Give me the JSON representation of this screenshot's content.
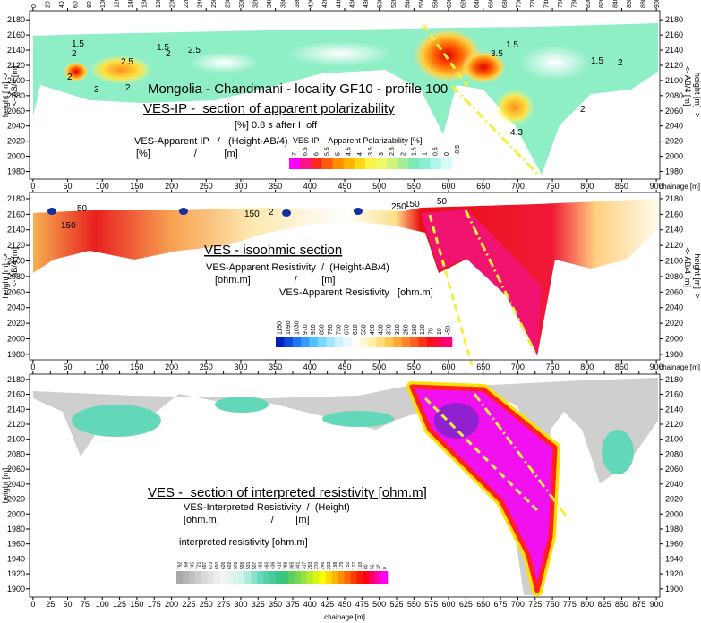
{
  "chart_data": [
    {
      "type": "contour",
      "title": "Mongolia - Chandmani - locality GF10 - profile 100",
      "subtitle": "VES-IP -  section of apparent polarizability",
      "note": "[%] 0.8 s after I  off",
      "formula": "VES-Apparent IP   /   (Height-AB/4)",
      "formula_units": "[%]                /          [m]",
      "x_label": "chainage [m]",
      "y_label": "height [m] ->",
      "y_label2": "<- AB/4 [m]",
      "xlim": [
        -5,
        905
      ],
      "xticks": [
        0,
        50,
        100,
        150,
        200,
        250,
        300,
        350,
        400,
        450,
        500,
        550,
        600,
        650,
        700,
        750,
        800,
        850,
        900
      ],
      "x2ticks": [
        0,
        20,
        40,
        60,
        80,
        100,
        120,
        140,
        160,
        180,
        200,
        220,
        240,
        260,
        280,
        300,
        320,
        340,
        360,
        380,
        400,
        420,
        440,
        460,
        480,
        500,
        520,
        540,
        560,
        580,
        600,
        620,
        640,
        660,
        680,
        700,
        720,
        740,
        760,
        780,
        800,
        820,
        840,
        860,
        880,
        900
      ],
      "ylim": [
        1970,
        2192
      ],
      "yticks": [
        1980,
        2000,
        2020,
        2040,
        2060,
        2080,
        2100,
        2120,
        2140,
        2160,
        2180
      ],
      "colorbar": {
        "title": "VES-IP -  Apparent Polarizability [%]",
        "labels": [
          7,
          6.5,
          6,
          5.5,
          5,
          4.5,
          4,
          3.5,
          3,
          2.5,
          2,
          1.5,
          1,
          0.5,
          0,
          -0.5
        ],
        "colors": [
          "#ff00ff",
          "#ff2020",
          "#ff8000",
          "#ffd000",
          "#ffff60",
          "#c0f080",
          "#70e8c0",
          "#b0f8f0",
          "#ffffff"
        ]
      },
      "contour_labels": [
        1.5,
        2,
        1.5,
        2,
        2.5,
        2.5,
        2,
        3,
        2,
        1.5,
        2,
        2,
        4.3,
        1.5,
        3.5
      ]
    },
    {
      "type": "contour",
      "subtitle": "VES - isoohmic section",
      "formula": "VES-Apparent Resistivity  /  (Height-AB/4)",
      "formula_units": "[ohm.m]                /         [m]",
      "x_label": "chainage [m]",
      "y_label": "height [m] ->",
      "y_label2": "<- AB/4 [m]",
      "xlim": [
        -5,
        905
      ],
      "xticks": [
        0,
        50,
        100,
        150,
        200,
        250,
        300,
        350,
        400,
        450,
        500,
        550,
        600,
        650,
        700,
        750,
        800,
        850,
        900
      ],
      "ylim": [
        1973,
        2188
      ],
      "yticks": [
        1980,
        2000,
        2020,
        2040,
        2060,
        2080,
        2100,
        2120,
        2140,
        2160,
        2180
      ],
      "colorbar": {
        "title": "VES-Apparent Resistivity   [ohm.m]",
        "labels": [
          1150,
          1090,
          1030,
          970,
          910,
          850,
          790,
          730,
          670,
          610,
          550,
          490,
          430,
          370,
          310,
          250,
          190,
          130,
          70,
          10,
          -50
        ],
        "colors": [
          "#0020c0",
          "#2080ff",
          "#60d0ff",
          "#c0f0ff",
          "#ffffff",
          "#fff0a0",
          "#ffc040",
          "#ff7020",
          "#ff1010",
          "#ff0080"
        ]
      },
      "contour_labels": [
        150,
        50,
        150,
        2,
        250,
        150,
        50
      ]
    },
    {
      "type": "contour",
      "subtitle": "VES -  section of interpreted resistivity [ohm.m]",
      "formula": "VES-Interpreted Resistivity  /  (Height)",
      "formula_units": "[ohm.m]                   /        [m]",
      "x_label": "chainage [m]",
      "y_label": "height [m]",
      "xlim": [
        -5,
        905
      ],
      "xticks": [
        0,
        25,
        50,
        75,
        100,
        125,
        150,
        175,
        200,
        225,
        250,
        275,
        300,
        325,
        350,
        375,
        400,
        425,
        450,
        475,
        500,
        525,
        550,
        575,
        600,
        625,
        650,
        675,
        700,
        725,
        750,
        775,
        800,
        825,
        850,
        875,
        900
      ],
      "ylim": [
        1889,
        2187
      ],
      "yticks": [
        1900,
        1920,
        1940,
        1960,
        1980,
        2000,
        2020,
        2040,
        2060,
        2080,
        2100,
        2120,
        2140,
        2160,
        2180
      ],
      "colorbar": {
        "title": "interpreted resistivity [ohm.m]",
        "labels": [
          792,
          768,
          745,
          721,
          697,
          673,
          650,
          626,
          602,
          578,
          555,
          531,
          507,
          483,
          460,
          436,
          412,
          388,
          365,
          341,
          317,
          293,
          270,
          246,
          222,
          198,
          175,
          151,
          127,
          103,
          80,
          56,
          32,
          0
        ],
        "colors": [
          "#a8a8a8",
          "#d0d0d0",
          "#f4f4f4",
          "#d0f4ec",
          "#60d8b8",
          "#30c080",
          "#90e040",
          "#ffff00",
          "#ff8000",
          "#ff0000",
          "#ff00ff"
        ]
      }
    }
  ]
}
